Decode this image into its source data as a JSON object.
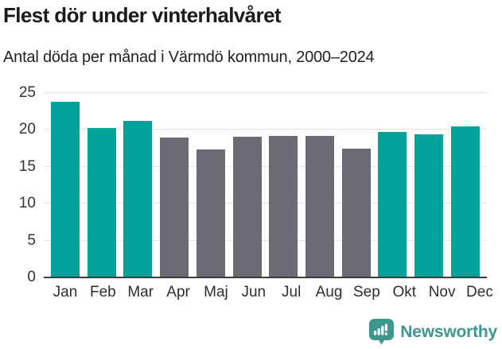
{
  "chart_data": {
    "type": "bar",
    "title": "Flest dör under vinterhalvåret",
    "subtitle": "Antal döda per månad i Värmdö kommun, 2000–2024",
    "categories": [
      "Jan",
      "Feb",
      "Mar",
      "Apr",
      "Maj",
      "Jun",
      "Jul",
      "Aug",
      "Sep",
      "Okt",
      "Nov",
      "Dec"
    ],
    "values": [
      23.8,
      20.3,
      21.2,
      19.0,
      17.4,
      19.1,
      19.2,
      19.2,
      17.5,
      19.7,
      19.4,
      20.5
    ],
    "highlighted": [
      true,
      true,
      true,
      false,
      false,
      false,
      false,
      false,
      false,
      true,
      true,
      true
    ],
    "xlabel": "",
    "ylabel": "",
    "ylim": [
      0,
      25
    ],
    "yticks": [
      0,
      5,
      10,
      15,
      20,
      25
    ],
    "grid": true,
    "legend": "none",
    "colors": {
      "highlight": "#00a29a",
      "muted": "#6d6a74",
      "gridline": "#e2e2e2",
      "axis_line": "#3e3e3e",
      "tick_label": "#333333",
      "title": "#1b1b1b"
    }
  },
  "branding": {
    "logo_text": "Newsworthy",
    "logo_color": "#3f968f",
    "logo_icon": "speech-bubble-bar-chart-icon"
  }
}
